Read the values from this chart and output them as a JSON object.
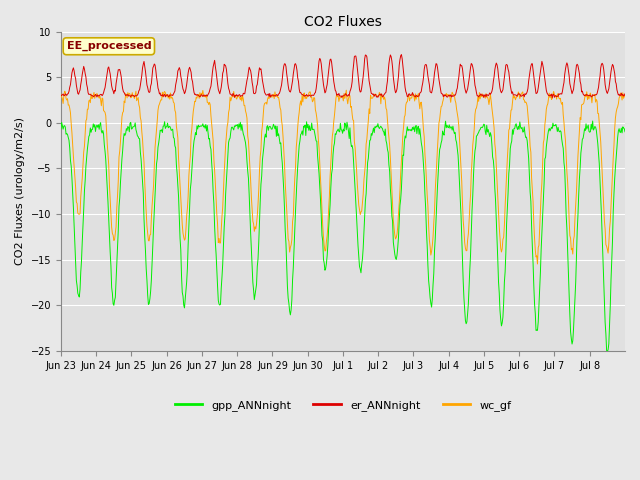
{
  "title": "CO2 Fluxes",
  "ylabel": "CO2 Fluxes (urology/m2/s)",
  "ylim": [
    -25,
    10
  ],
  "yticks": [
    -25,
    -20,
    -15,
    -10,
    -5,
    0,
    5,
    10
  ],
  "x_labels": [
    "Jun 23",
    "Jun 24",
    "Jun 25",
    "Jun 26",
    "Jun 27",
    "Jun 28",
    "Jun 29",
    "Jun 30",
    "Jul 1",
    "Jul 2",
    "Jul 3",
    "Jul 4",
    "Jul 5",
    "Jul 6",
    "Jul 7",
    "Jul 8"
  ],
  "n_days": 16,
  "points_per_day": 48,
  "gpp_color": "#00ee00",
  "er_color": "#dd0000",
  "wc_color": "#ffa500",
  "fig_bg": "#e8e8e8",
  "plot_bg": "#e0e0e0",
  "legend_label": "EE_processed",
  "legend_entries": [
    "gpp_ANNnight",
    "er_ANNnight",
    "wc_gf"
  ],
  "title_fontsize": 10,
  "axis_fontsize": 8,
  "tick_fontsize": 7,
  "legend_fontsize": 8
}
